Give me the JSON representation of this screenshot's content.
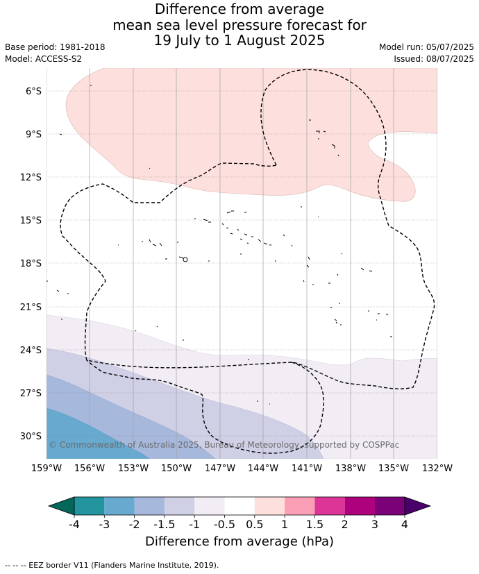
{
  "title_lines": [
    "Difference from average",
    "mean sea level pressure forecast for",
    "19 July to 1 August 2025"
  ],
  "meta_left": {
    "base_period": "Base period: 1981-2018",
    "model": "Model: ACCESS-S2"
  },
  "meta_right": {
    "model_run": "Model run: 05/07/2025",
    "issued": "Issued: 08/07/2025"
  },
  "map": {
    "lon_labels": [
      "159°W",
      "156°W",
      "153°W",
      "150°W",
      "147°W",
      "144°W",
      "141°W",
      "138°W",
      "135°W",
      "132°W"
    ],
    "lat_labels": [
      "6°S",
      "9°S",
      "12°S",
      "15°S",
      "18°S",
      "21°S",
      "24°S",
      "27°S",
      "30°S"
    ],
    "copyright": "© Commonwealth of Australia 2025, Bureau of Meteorology, supported by COSPPac"
  },
  "colorbar": {
    "ticks": [
      "-4",
      "-3",
      "-2",
      "-1.5",
      "-1",
      "-0.5",
      "0.5",
      "1",
      "1.5",
      "2",
      "3",
      "4"
    ],
    "colors": {
      "below_min": "#05665a",
      "-4..-3": "#21949e",
      "-3..-2": "#67a9cf",
      "-2..-1.5": "#a6b8dc",
      "-1.5..-1": "#cfd0e6",
      "-1..-0.5": "#f2ecf5",
      "-0.5..0.5": "#ffffff",
      "0.5..1": "#fde0dd",
      "1..1.5": "#fa9fb5",
      "1.5..2": "#dd3497",
      "2..3": "#ae017e",
      "3..4": "#7a0177",
      "above_max": "#49006a"
    },
    "label": "Difference from average (hPa)"
  },
  "footnote": "--  --  -- EEZ border V11 (Flanders Marine Institute, 2019)."
}
